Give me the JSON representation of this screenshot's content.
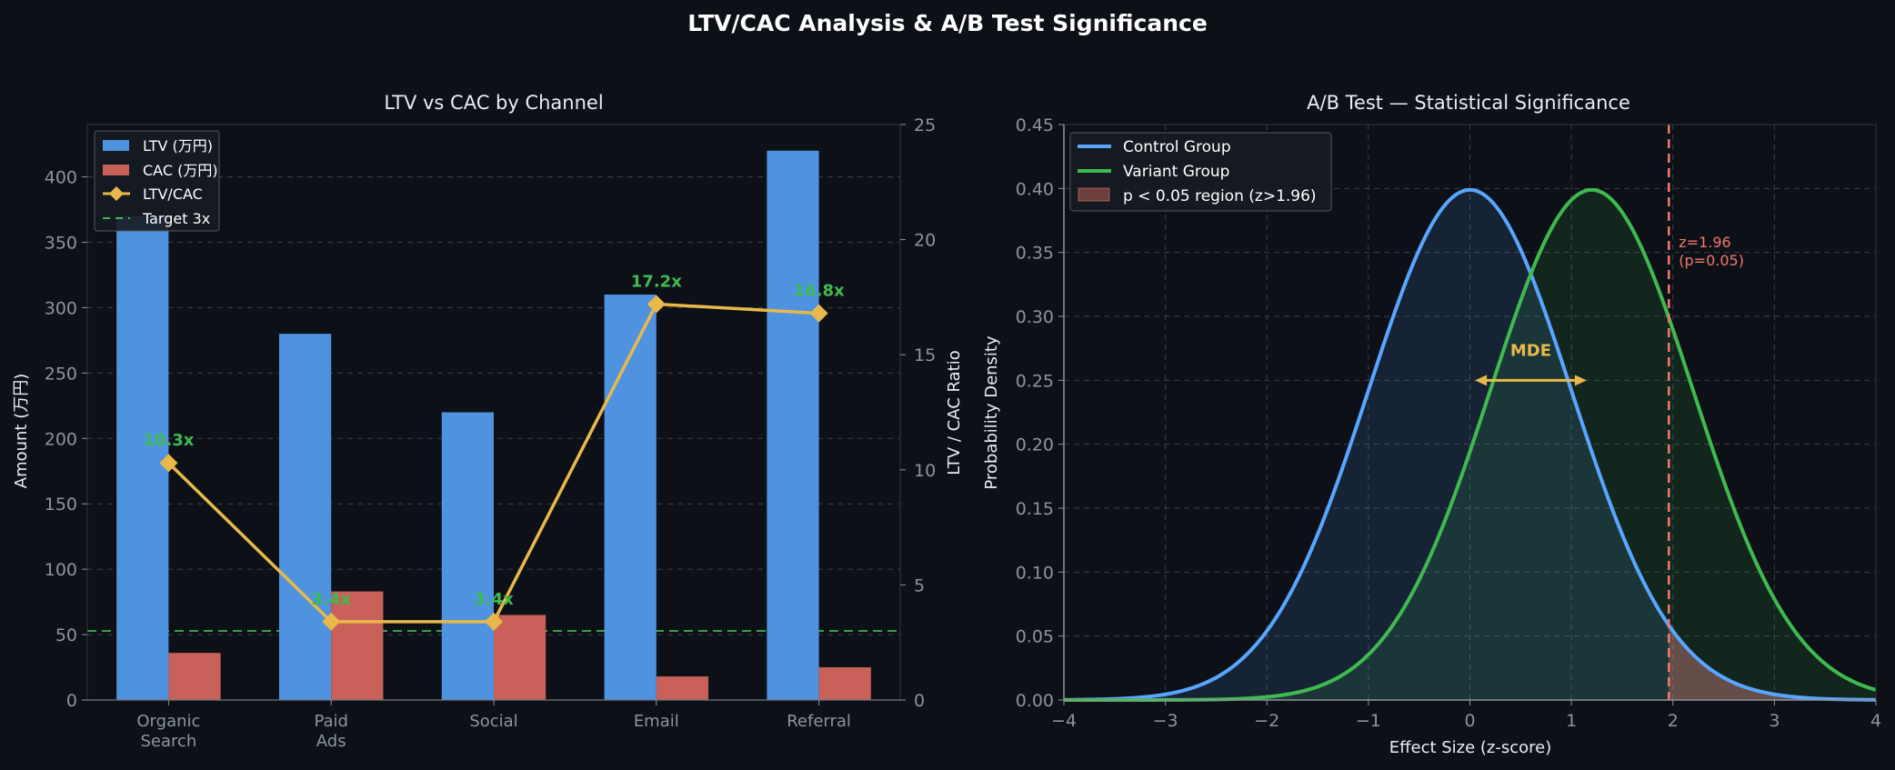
{
  "figure_title": "LTV/CAC Analysis & A/B Test Significance",
  "colors": {
    "background": "#0d1117",
    "ltv": "#4f93e0",
    "cac": "#c9605a",
    "ratio": "#e8b94a",
    "target": "#3fb950",
    "ratio_label": "#3fb950",
    "control": "#58a6ff",
    "variant": "#3fb950",
    "threshold": "#f0786e",
    "mde": "#e8b94a"
  },
  "chart_data": [
    {
      "type": "bar",
      "title": "LTV vs CAC by Channel",
      "categories": [
        "Organic\nSearch",
        "Paid\nAds",
        "Social",
        "Email",
        "Referral"
      ],
      "series": [
        {
          "name": "LTV (万円)",
          "values": [
            370,
            280,
            220,
            310,
            420
          ]
        },
        {
          "name": "CAC (万円)",
          "values": [
            36,
            83,
            65,
            18,
            25
          ]
        }
      ],
      "ylabel": "Amount (万円)",
      "ylim": [
        0,
        440
      ],
      "yticks": [
        0,
        50,
        100,
        150,
        200,
        250,
        300,
        350,
        400
      ],
      "secondary_axis": {
        "ylabel": "LTV / CAC Ratio",
        "ylim": [
          0,
          25
        ],
        "yticks": [
          0,
          5,
          10,
          15,
          20,
          25
        ],
        "series": {
          "name": "LTV/CAC",
          "values": [
            10.3,
            3.4,
            3.4,
            17.2,
            16.8
          ],
          "labels": [
            "10.3x",
            "3.4x",
            "3.4x",
            "17.2x",
            "16.8x"
          ]
        },
        "target": {
          "name": "Target 3x",
          "value": 3
        }
      },
      "legend": [
        "LTV (万円)",
        "CAC (万円)",
        "LTV/CAC",
        "Target 3x"
      ],
      "legend_position": "top-left",
      "grid": true
    },
    {
      "type": "line",
      "title": "A/B Test — Statistical Significance",
      "xlabel": "Effect Size (z-score)",
      "ylabel": "Probability Density",
      "xlim": [
        -4,
        4
      ],
      "ylim": [
        0,
        0.45
      ],
      "xticks": [
        -4,
        -3,
        -2,
        -1,
        0,
        1,
        2,
        3,
        4
      ],
      "xtick_labels": [
        "−4",
        "−3",
        "−2",
        "−1",
        "0",
        "1",
        "2",
        "3",
        "4"
      ],
      "yticks": [
        0,
        0.05,
        0.1,
        0.15,
        0.2,
        0.25,
        0.3,
        0.35,
        0.4,
        0.45
      ],
      "ytick_labels": [
        "0.00",
        "0.05",
        "0.10",
        "0.15",
        "0.20",
        "0.25",
        "0.30",
        "0.35",
        "0.40",
        "0.45"
      ],
      "series": [
        {
          "name": "Control Group",
          "mean": 0,
          "sd": 1
        },
        {
          "name": "Variant Group",
          "mean": 1.2,
          "sd": 1
        }
      ],
      "significance": {
        "name": "p < 0.05 region (z>1.96)",
        "z": 1.96,
        "label_line1": "z=1.96",
        "label_line2": "(p=0.05)"
      },
      "mde": {
        "label": "MDE",
        "from": 0.05,
        "to": 1.15,
        "y": 0.25
      },
      "legend": [
        "Control Group",
        "Variant Group",
        "p < 0.05 region (z>1.96)"
      ],
      "legend_position": "top-left",
      "grid": true
    }
  ]
}
